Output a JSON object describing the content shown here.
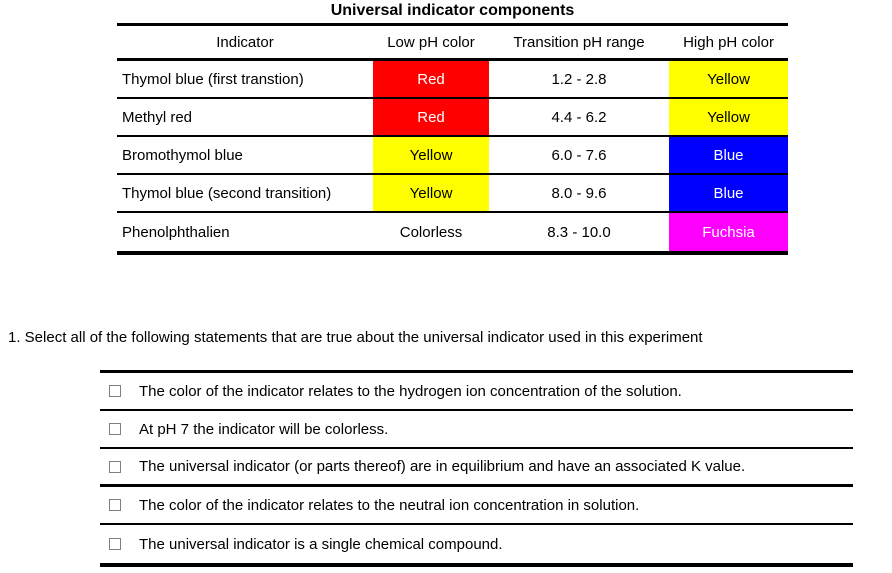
{
  "table": {
    "title": "Universal indicator components",
    "columns": [
      "Indicator",
      "Low pH color",
      "Transition pH range",
      "High pH color"
    ],
    "rows": [
      {
        "indicator": "Thymol blue (first transtion)",
        "low": {
          "label": "Red",
          "bg": "#ff0000",
          "fg": "#ffffff"
        },
        "range": "1.2 - 2.8",
        "high": {
          "label": "Yellow",
          "bg": "#ffff00",
          "fg": "#000000"
        }
      },
      {
        "indicator": "Methyl red",
        "low": {
          "label": "Red",
          "bg": "#ff0000",
          "fg": "#ffffff"
        },
        "range": "4.4 - 6.2",
        "high": {
          "label": "Yellow",
          "bg": "#ffff00",
          "fg": "#000000"
        }
      },
      {
        "indicator": "Bromothymol blue",
        "low": {
          "label": "Yellow",
          "bg": "#ffff00",
          "fg": "#000000"
        },
        "range": "6.0 - 7.6",
        "high": {
          "label": "Blue",
          "bg": "#0000ff",
          "fg": "#ffffff"
        }
      },
      {
        "indicator": "Thymol blue (second transition)",
        "low": {
          "label": "Yellow",
          "bg": "#ffff00",
          "fg": "#000000"
        },
        "range": "8.0 - 9.6",
        "high": {
          "label": "Blue",
          "bg": "#0000ff",
          "fg": "#ffffff"
        }
      },
      {
        "indicator": "Phenolphthalien",
        "low": {
          "label": "Colorless",
          "bg": "#ffffff",
          "fg": "#000000"
        },
        "range": "8.3 - 10.0",
        "high": {
          "label": "Fuchsia",
          "bg": "#ff00ff",
          "fg": "#ffffff"
        }
      }
    ]
  },
  "question": {
    "number": "1.",
    "text": "1. Select all of the following statements that are true about the universal indicator used in this experiment"
  },
  "checklist": {
    "items": [
      {
        "label": "The color of the indicator relates to the hydrogen ion concentration of the solution.",
        "checked": false
      },
      {
        "label": "At pH 7 the indicator will be colorless.",
        "checked": false
      },
      {
        "label": "The universal indicator (or parts thereof) are in equilibrium and have an associated K value.",
        "checked": false
      },
      {
        "label": "The color of the indicator relates to the neutral ion concentration in solution.",
        "checked": false
      },
      {
        "label": "The universal indicator is a single chemical compound.",
        "checked": false
      }
    ]
  }
}
